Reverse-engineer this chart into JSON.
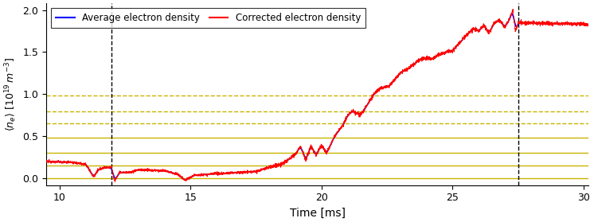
{
  "xlabel": "Time [ms]",
  "ylabel": "$\\langle n_e \\rangle$ [$10^{19}\\,m^{-3}$]",
  "xlim": [
    9.5,
    30.2
  ],
  "ylim": [
    -0.08,
    2.08
  ],
  "xticks": [
    10,
    15,
    20,
    25,
    30
  ],
  "yticks": [
    0.0,
    0.5,
    1.0,
    1.5,
    2.0
  ],
  "legend_labels": [
    "Average electron density",
    "Corrected electron density"
  ],
  "vlines": [
    12.0,
    27.5
  ],
  "vline_color": "black",
  "hlines_solid": [
    0.0,
    0.15,
    0.3,
    0.48
  ],
  "hlines_dashed": [
    0.65,
    0.8,
    0.98
  ],
  "hline_color": "#c8b400",
  "figsize": [
    7.46,
    2.79
  ],
  "dpi": 100
}
